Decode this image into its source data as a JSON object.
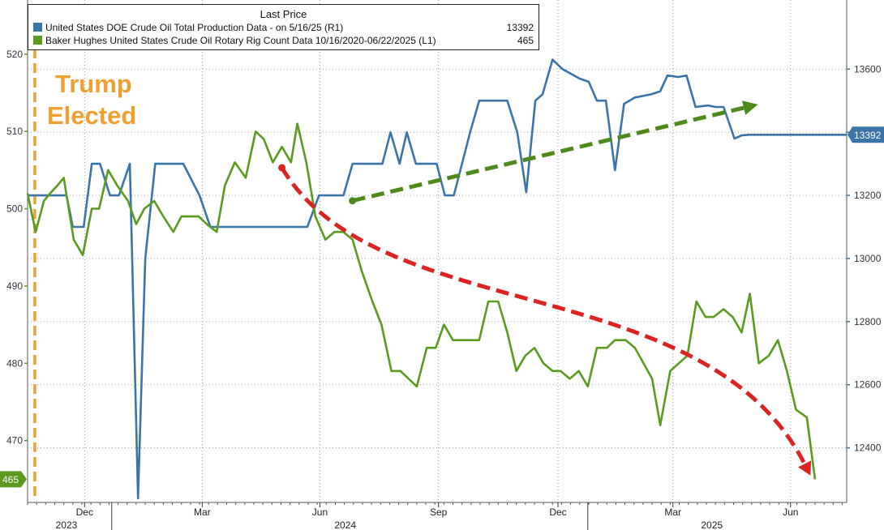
{
  "legend": {
    "header": "Last Price",
    "series1_label": "United States DOE Crude Oil Total Production Data -  on 5/16/25  (R1)",
    "series1_value": "13392",
    "series2_label": "Baker Hughes United States Crude Oil Rotary Rig Count Data 10/16/2020-06/22/2025  (L1)",
    "series2_value": "465"
  },
  "annotation": {
    "line1": "Trump",
    "line2": "Elected"
  },
  "chart_data": {
    "type": "line",
    "colors": {
      "production": "#3A74A8",
      "rigs": "#5A9A1E",
      "election_marker": "#F0A030",
      "up_arrow": "#4E8A1A",
      "down_arrow": "#DD2222"
    },
    "x_range": [
      0,
      90.5
    ],
    "x_axis": {
      "month_ticks": [
        {
          "label": "Dec",
          "x": 6.3
        },
        {
          "label": "Mar",
          "x": 19.3
        },
        {
          "label": "Jun",
          "x": 32.3
        },
        {
          "label": "Sep",
          "x": 45.4
        },
        {
          "label": "Dec",
          "x": 58.6
        },
        {
          "label": "Mar",
          "x": 71.3
        },
        {
          "label": "Jun",
          "x": 84.3
        }
      ],
      "year_labels": [
        {
          "label": "2023",
          "x": 4.3
        },
        {
          "label": "2024",
          "x": 35.1
        },
        {
          "label": "2025",
          "x": 75.6
        }
      ],
      "year_dividers": [
        9.3,
        61.9
      ]
    },
    "left_axis": {
      "series": "Baker Hughes Crude Oil Rig Count",
      "ylim": [
        462,
        527
      ],
      "ticks": [
        470,
        480,
        490,
        500,
        510,
        520
      ],
      "last_value_label": "465",
      "last_value": 465
    },
    "right_axis": {
      "series": "DOE Crude Oil Total Production",
      "ylim": [
        12227,
        13819
      ],
      "ticks": [
        12400,
        12600,
        12800,
        13000,
        13200,
        13400,
        13600
      ],
      "last_value_label": "13392",
      "last_value": 13392
    },
    "series": [
      {
        "name": "United States DOE Crude Oil Total Production Data",
        "axis": "right",
        "points": [
          [
            0,
            13200
          ],
          [
            4.3,
            13200
          ],
          [
            5.0,
            13100
          ],
          [
            6.2,
            13100
          ],
          [
            7.1,
            13300
          ],
          [
            8.0,
            13300
          ],
          [
            9.1,
            13200
          ],
          [
            10.1,
            13200
          ],
          [
            11.3,
            13300
          ],
          [
            12.2,
            12240
          ],
          [
            13.0,
            13000
          ],
          [
            14.1,
            13300
          ],
          [
            17.2,
            13300
          ],
          [
            19.0,
            13200
          ],
          [
            20.2,
            13100
          ],
          [
            30.9,
            13100
          ],
          [
            32.2,
            13200
          ],
          [
            34.9,
            13200
          ],
          [
            35.9,
            13300
          ],
          [
            39.2,
            13300
          ],
          [
            40.1,
            13400
          ],
          [
            41.1,
            13300
          ],
          [
            41.9,
            13400
          ],
          [
            42.9,
            13300
          ],
          [
            45.2,
            13300
          ],
          [
            46.1,
            13200
          ],
          [
            47.1,
            13200
          ],
          [
            48.9,
            13400
          ],
          [
            49.9,
            13500
          ],
          [
            53.0,
            13500
          ],
          [
            54.1,
            13400
          ],
          [
            55.1,
            13210
          ],
          [
            56.1,
            13500
          ],
          [
            56.9,
            13520
          ],
          [
            58.0,
            13630
          ],
          [
            59.1,
            13600
          ],
          [
            61.0,
            13570
          ],
          [
            62.0,
            13560
          ],
          [
            62.9,
            13500
          ],
          [
            63.9,
            13500
          ],
          [
            64.9,
            13280
          ],
          [
            65.9,
            13490
          ],
          [
            67.1,
            13510
          ],
          [
            68.9,
            13520
          ],
          [
            69.9,
            13530
          ],
          [
            70.7,
            13580
          ],
          [
            71.9,
            13575
          ],
          [
            72.8,
            13580
          ],
          [
            73.8,
            13480
          ],
          [
            75.2,
            13485
          ],
          [
            76.0,
            13480
          ],
          [
            76.9,
            13480
          ],
          [
            78.1,
            13380
          ],
          [
            78.9,
            13390
          ],
          [
            79.7,
            13392
          ],
          [
            83.0,
            13392
          ],
          [
            86.3,
            13392
          ],
          [
            90.5,
            13392
          ]
        ]
      },
      {
        "name": "Baker Hughes United States Crude Oil Rotary Rig Count Data",
        "axis": "left",
        "points": [
          [
            0,
            502
          ],
          [
            0.9,
            497
          ],
          [
            1.8,
            501
          ],
          [
            2.5,
            502
          ],
          [
            3.3,
            503
          ],
          [
            4.0,
            504
          ],
          [
            5.1,
            496
          ],
          [
            6.1,
            494
          ],
          [
            7.1,
            500
          ],
          [
            7.9,
            500
          ],
          [
            8.9,
            505
          ],
          [
            9.9,
            503
          ],
          [
            11.1,
            501
          ],
          [
            12.0,
            498
          ],
          [
            12.9,
            500
          ],
          [
            14.0,
            501
          ],
          [
            15.0,
            499
          ],
          [
            16.1,
            497
          ],
          [
            17.0,
            499
          ],
          [
            18.9,
            499
          ],
          [
            19.8,
            498
          ],
          [
            20.9,
            497
          ],
          [
            21.8,
            503
          ],
          [
            22.9,
            506
          ],
          [
            24.1,
            504
          ],
          [
            25.2,
            510
          ],
          [
            26.1,
            509
          ],
          [
            27.1,
            506
          ],
          [
            28.1,
            508
          ],
          [
            29.1,
            506
          ],
          [
            29.8,
            511
          ],
          [
            30.8,
            506
          ],
          [
            31.8,
            499
          ],
          [
            32.9,
            496
          ],
          [
            33.9,
            497
          ],
          [
            34.9,
            497
          ],
          [
            35.9,
            496
          ],
          [
            36.9,
            492
          ],
          [
            38.1,
            488
          ],
          [
            39.1,
            485
          ],
          [
            40.2,
            479
          ],
          [
            41.2,
            479
          ],
          [
            43.0,
            477
          ],
          [
            44.1,
            482
          ],
          [
            45.1,
            482
          ],
          [
            46.0,
            485
          ],
          [
            47.0,
            483
          ],
          [
            49.9,
            483
          ],
          [
            50.9,
            488
          ],
          [
            52.0,
            488
          ],
          [
            53.0,
            484
          ],
          [
            54.0,
            479
          ],
          [
            55.0,
            481
          ],
          [
            56.0,
            482
          ],
          [
            57.0,
            480
          ],
          [
            58.0,
            479
          ],
          [
            58.9,
            479
          ],
          [
            59.9,
            478
          ],
          [
            60.9,
            479
          ],
          [
            61.9,
            477
          ],
          [
            62.9,
            482
          ],
          [
            64.0,
            482
          ],
          [
            64.9,
            483
          ],
          [
            66.1,
            483
          ],
          [
            67.1,
            482
          ],
          [
            69.0,
            478
          ],
          [
            69.9,
            472
          ],
          [
            71.0,
            479
          ],
          [
            72.9,
            481
          ],
          [
            73.9,
            488
          ],
          [
            74.9,
            486
          ],
          [
            75.8,
            486
          ],
          [
            76.9,
            487
          ],
          [
            77.9,
            486
          ],
          [
            78.9,
            484
          ],
          [
            79.8,
            489
          ],
          [
            80.8,
            480
          ],
          [
            81.9,
            481
          ],
          [
            82.9,
            483
          ],
          [
            83.9,
            479
          ],
          [
            84.9,
            474
          ],
          [
            86.1,
            473
          ],
          [
            87.0,
            465
          ]
        ]
      }
    ],
    "annotations": [
      {
        "type": "vertical-dashed-line",
        "x": 0.8,
        "label": "Trump Elected"
      },
      {
        "type": "dashed-arrow",
        "direction": "up",
        "from": {
          "x": 35.9,
          "y_right": 13183
        },
        "to": {
          "x": 80.7,
          "y_right": 13488
        }
      },
      {
        "type": "dashed-arrow",
        "direction": "down",
        "from": {
          "x": 28.1,
          "y_left": 505.3
        },
        "to": {
          "x": 86.5,
          "y_left": 465.5
        }
      }
    ]
  }
}
